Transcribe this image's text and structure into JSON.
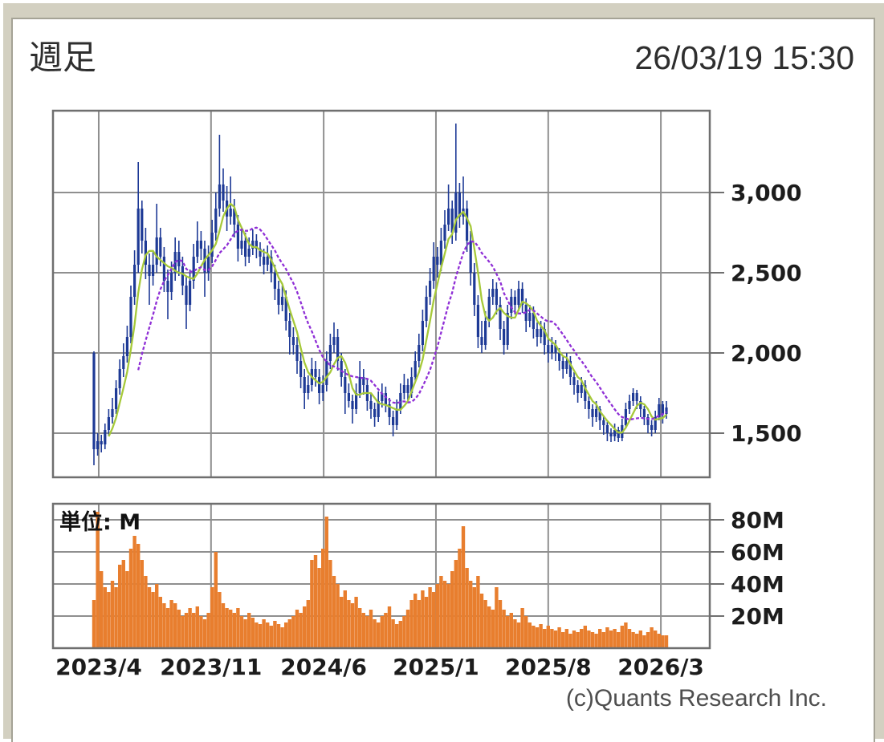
{
  "header": {
    "period_label": "週足",
    "timestamp": "26/03/19 15:30"
  },
  "footer": {
    "copyright": "(c)Quants Research Inc."
  },
  "colors": {
    "background": "#d3d0c1",
    "panel_border": "#a5a396",
    "grid": "#8f8f8f",
    "plot_border": "#6f6f6f",
    "candle": "#1e3a96",
    "ma_short": "#a6c93a",
    "ma_long": "#8f2fd6",
    "volume": "#e87e2e",
    "tick_text": "#1c1c1c"
  },
  "chart_data": {
    "type": "candlestick+volume",
    "title": "週足",
    "x_ticks": [
      {
        "label": "2023/4",
        "week": 1.3
      },
      {
        "label": "2023/11",
        "week": 31.7
      },
      {
        "label": "2024/6",
        "week": 62.2
      },
      {
        "label": "2025/1",
        "week": 92.6
      },
      {
        "label": "2025/8",
        "week": 123.0
      },
      {
        "label": "2026/3",
        "week": 153.5
      }
    ],
    "price_axis": {
      "range": [
        1225,
        3510
      ],
      "ticks": [
        {
          "label": "3,000",
          "value": 3000
        },
        {
          "label": "2,500",
          "value": 2500
        },
        {
          "label": "2,000",
          "value": 2000
        },
        {
          "label": "1,500",
          "value": 1500
        }
      ]
    },
    "volume_axis": {
      "unit_label": "単位: M",
      "range": [
        0,
        90
      ],
      "ticks": [
        {
          "label": "80M",
          "value": 80
        },
        {
          "label": "60M",
          "value": 60
        },
        {
          "label": "40M",
          "value": 40
        },
        {
          "label": "20M",
          "value": 20
        }
      ]
    },
    "ma_lines": [
      {
        "name": "ma-short",
        "period": 5,
        "color_key": "ma_short",
        "dashed": false
      },
      {
        "name": "ma-long",
        "period": 13,
        "color_key": "ma_long",
        "dashed": true
      }
    ],
    "series": {
      "candles_ohlc": [
        [
          2000,
          2010,
          1300,
          1400
        ],
        [
          1400,
          1500,
          1360,
          1450
        ],
        [
          1450,
          1490,
          1380,
          1430
        ],
        [
          1430,
          1560,
          1400,
          1520
        ],
        [
          1520,
          1650,
          1480,
          1600
        ],
        [
          1600,
          1720,
          1560,
          1650
        ],
        [
          1650,
          1830,
          1620,
          1780
        ],
        [
          1780,
          1960,
          1740,
          1900
        ],
        [
          1900,
          2060,
          1850,
          1980
        ],
        [
          1980,
          2170,
          1940,
          2100
        ],
        [
          2100,
          2420,
          2060,
          2350
        ],
        [
          2350,
          2640,
          2300,
          2550
        ],
        [
          2550,
          3190,
          2500,
          2900
        ],
        [
          2900,
          2950,
          2620,
          2700
        ],
        [
          2700,
          2780,
          2460,
          2550
        ],
        [
          2550,
          2620,
          2300,
          2480
        ],
        [
          2480,
          2640,
          2420,
          2550
        ],
        [
          2550,
          2930,
          2500,
          2720
        ],
        [
          2720,
          2780,
          2540,
          2600
        ],
        [
          2600,
          2660,
          2380,
          2450
        ],
        [
          2450,
          2520,
          2210,
          2380
        ],
        [
          2380,
          2570,
          2330,
          2500
        ],
        [
          2500,
          2720,
          2450,
          2630
        ],
        [
          2630,
          2700,
          2480,
          2540
        ],
        [
          2540,
          2600,
          2360,
          2420
        ],
        [
          2420,
          2480,
          2150,
          2300
        ],
        [
          2300,
          2520,
          2260,
          2450
        ],
        [
          2450,
          2680,
          2400,
          2600
        ],
        [
          2600,
          2820,
          2560,
          2700
        ],
        [
          2700,
          2760,
          2580,
          2650
        ],
        [
          2650,
          2700,
          2350,
          2500
        ],
        [
          2500,
          2670,
          2450,
          2600
        ],
        [
          2600,
          2830,
          2560,
          2750
        ],
        [
          2750,
          3000,
          2700,
          2900
        ],
        [
          2900,
          3360,
          2850,
          3050
        ],
        [
          3050,
          3150,
          2880,
          2950
        ],
        [
          2950,
          3040,
          2760,
          2850
        ],
        [
          2850,
          3100,
          2800,
          2900
        ],
        [
          2900,
          2960,
          2720,
          2800
        ],
        [
          2800,
          2860,
          2570,
          2650
        ],
        [
          2650,
          2780,
          2610,
          2700
        ],
        [
          2700,
          2750,
          2540,
          2600
        ],
        [
          2600,
          2720,
          2560,
          2650
        ],
        [
          2650,
          2770,
          2610,
          2700
        ],
        [
          2700,
          2740,
          2590,
          2650
        ],
        [
          2650,
          2690,
          2540,
          2600
        ],
        [
          2600,
          2650,
          2490,
          2550
        ],
        [
          2550,
          2670,
          2510,
          2600
        ],
        [
          2600,
          2640,
          2440,
          2500
        ],
        [
          2500,
          2550,
          2330,
          2400
        ],
        [
          2400,
          2450,
          2240,
          2300
        ],
        [
          2300,
          2420,
          2260,
          2350
        ],
        [
          2350,
          2390,
          2140,
          2200
        ],
        [
          2200,
          2250,
          1990,
          2100
        ],
        [
          2100,
          2160,
          1990,
          2050
        ],
        [
          2050,
          2100,
          1870,
          1950
        ],
        [
          1950,
          2000,
          1780,
          1850
        ],
        [
          1850,
          1900,
          1650,
          1750
        ],
        [
          1750,
          1860,
          1710,
          1800
        ],
        [
          1800,
          1970,
          1760,
          1900
        ],
        [
          1900,
          1950,
          1790,
          1850
        ],
        [
          1850,
          1900,
          1680,
          1750
        ],
        [
          1750,
          1860,
          1700,
          1800
        ],
        [
          1800,
          2010,
          1760,
          1950
        ],
        [
          1950,
          2120,
          1900,
          2050
        ],
        [
          2050,
          2190,
          2000,
          2100
        ],
        [
          2100,
          2150,
          1890,
          1950
        ],
        [
          1950,
          2000,
          1790,
          1850
        ],
        [
          1850,
          1900,
          1620,
          1750
        ],
        [
          1750,
          1810,
          1660,
          1700
        ],
        [
          1700,
          1740,
          1560,
          1650
        ],
        [
          1650,
          1810,
          1620,
          1750
        ],
        [
          1750,
          1950,
          1720,
          1850
        ],
        [
          1850,
          1900,
          1740,
          1800
        ],
        [
          1800,
          1840,
          1640,
          1700
        ],
        [
          1700,
          1750,
          1590,
          1650
        ],
        [
          1650,
          1690,
          1540,
          1600
        ],
        [
          1600,
          1760,
          1570,
          1700
        ],
        [
          1700,
          1810,
          1660,
          1750
        ],
        [
          1750,
          1790,
          1630,
          1680
        ],
        [
          1680,
          1720,
          1550,
          1600
        ],
        [
          1600,
          1640,
          1480,
          1550
        ],
        [
          1550,
          1710,
          1520,
          1650
        ],
        [
          1650,
          1810,
          1620,
          1750
        ],
        [
          1750,
          1870,
          1710,
          1800
        ],
        [
          1800,
          1840,
          1690,
          1750
        ],
        [
          1750,
          1910,
          1720,
          1850
        ],
        [
          1850,
          2010,
          1820,
          1950
        ],
        [
          1950,
          2120,
          1910,
          2050
        ],
        [
          2050,
          2270,
          2010,
          2200
        ],
        [
          2200,
          2420,
          2160,
          2350
        ],
        [
          2350,
          2530,
          2300,
          2450
        ],
        [
          2450,
          2690,
          2400,
          2600
        ],
        [
          2600,
          2660,
          2470,
          2550
        ],
        [
          2550,
          2780,
          2510,
          2700
        ],
        [
          2700,
          2890,
          2650,
          2800
        ],
        [
          2800,
          3050,
          2760,
          2900
        ],
        [
          2900,
          2950,
          2680,
          2750
        ],
        [
          2750,
          3430,
          2700,
          3000
        ],
        [
          3000,
          3060,
          2780,
          2850
        ],
        [
          2850,
          3100,
          2800,
          2900
        ],
        [
          2900,
          2950,
          2630,
          2700
        ],
        [
          2700,
          2760,
          2420,
          2500
        ],
        [
          2500,
          2560,
          2230,
          2300
        ],
        [
          2300,
          2360,
          2030,
          2100
        ],
        [
          2100,
          2200,
          2000,
          2050
        ],
        [
          2050,
          2260,
          2020,
          2200
        ],
        [
          2200,
          2400,
          2160,
          2350
        ],
        [
          2350,
          2460,
          2300,
          2400
        ],
        [
          2400,
          2440,
          2240,
          2300
        ],
        [
          2300,
          2350,
          2080,
          2150
        ],
        [
          2150,
          2200,
          1990,
          2050
        ],
        [
          2050,
          2300,
          2020,
          2250
        ],
        [
          2250,
          2400,
          2210,
          2350
        ],
        [
          2350,
          2390,
          2240,
          2300
        ],
        [
          2300,
          2450,
          2260,
          2400
        ],
        [
          2400,
          2440,
          2250,
          2300
        ],
        [
          2300,
          2340,
          2130,
          2200
        ],
        [
          2200,
          2300,
          2160,
          2250
        ],
        [
          2250,
          2290,
          2090,
          2150
        ],
        [
          2150,
          2190,
          2040,
          2100
        ],
        [
          2100,
          2200,
          2060,
          2150
        ],
        [
          2150,
          2190,
          1990,
          2050
        ],
        [
          2050,
          2090,
          1940,
          2000
        ],
        [
          2000,
          2100,
          1960,
          2050
        ],
        [
          2050,
          2080,
          1950,
          2000
        ],
        [
          2000,
          2030,
          1890,
          1950
        ],
        [
          1950,
          1980,
          1840,
          1900
        ],
        [
          1900,
          2000,
          1870,
          1950
        ],
        [
          1950,
          1980,
          1800,
          1850
        ],
        [
          1850,
          1880,
          1740,
          1800
        ],
        [
          1800,
          1830,
          1690,
          1750
        ],
        [
          1750,
          1850,
          1720,
          1800
        ],
        [
          1800,
          1830,
          1650,
          1700
        ],
        [
          1700,
          1730,
          1590,
          1650
        ],
        [
          1650,
          1680,
          1540,
          1600
        ],
        [
          1600,
          1700,
          1570,
          1650
        ],
        [
          1650,
          1670,
          1520,
          1580
        ],
        [
          1580,
          1610,
          1490,
          1550
        ],
        [
          1550,
          1570,
          1450,
          1500
        ],
        [
          1500,
          1530,
          1445,
          1480
        ],
        [
          1480,
          1560,
          1450,
          1520
        ],
        [
          1520,
          1540,
          1445,
          1470
        ],
        [
          1470,
          1590,
          1450,
          1550
        ],
        [
          1550,
          1690,
          1530,
          1650
        ],
        [
          1650,
          1740,
          1620,
          1700
        ],
        [
          1700,
          1780,
          1670,
          1750
        ],
        [
          1750,
          1770,
          1650,
          1700
        ],
        [
          1700,
          1730,
          1600,
          1650
        ],
        [
          1650,
          1670,
          1550,
          1600
        ],
        [
          1600,
          1620,
          1500,
          1550
        ],
        [
          1550,
          1580,
          1480,
          1520
        ],
        [
          1520,
          1640,
          1500,
          1600
        ],
        [
          1600,
          1720,
          1580,
          1680
        ],
        [
          1680,
          1700,
          1560,
          1620
        ],
        [
          1620,
          1700,
          1590,
          1660
        ]
      ],
      "volumes_m": [
        30,
        85,
        48,
        38,
        35,
        42,
        38,
        52,
        55,
        48,
        62,
        70,
        65,
        55,
        45,
        38,
        35,
        40,
        32,
        28,
        25,
        30,
        28,
        24,
        20,
        22,
        25,
        22,
        26,
        20,
        18,
        22,
        38,
        60,
        35,
        28,
        25,
        24,
        22,
        25,
        20,
        18,
        22,
        19,
        16,
        15,
        18,
        16,
        14,
        17,
        15,
        13,
        16,
        18,
        20,
        24,
        22,
        26,
        30,
        55,
        58,
        50,
        62,
        82,
        55,
        45,
        40,
        32,
        36,
        30,
        28,
        32,
        25,
        22,
        20,
        24,
        18,
        16,
        20,
        22,
        26,
        18,
        15,
        17,
        20,
        24,
        30,
        34,
        30,
        36,
        32,
        38,
        35,
        40,
        45,
        42,
        40,
        48,
        55,
        62,
        76,
        50,
        42,
        38,
        45,
        34,
        30,
        26,
        24,
        38,
        30,
        24,
        20,
        22,
        18,
        16,
        25,
        20,
        16,
        14,
        13,
        15,
        12,
        14,
        12,
        11,
        13,
        10,
        12,
        9,
        11,
        10,
        12,
        14,
        11,
        10,
        9,
        12,
        10,
        13,
        11,
        12,
        10,
        14,
        16,
        12,
        10,
        9,
        11,
        8,
        10,
        13,
        11,
        9,
        8,
        8
      ]
    }
  }
}
